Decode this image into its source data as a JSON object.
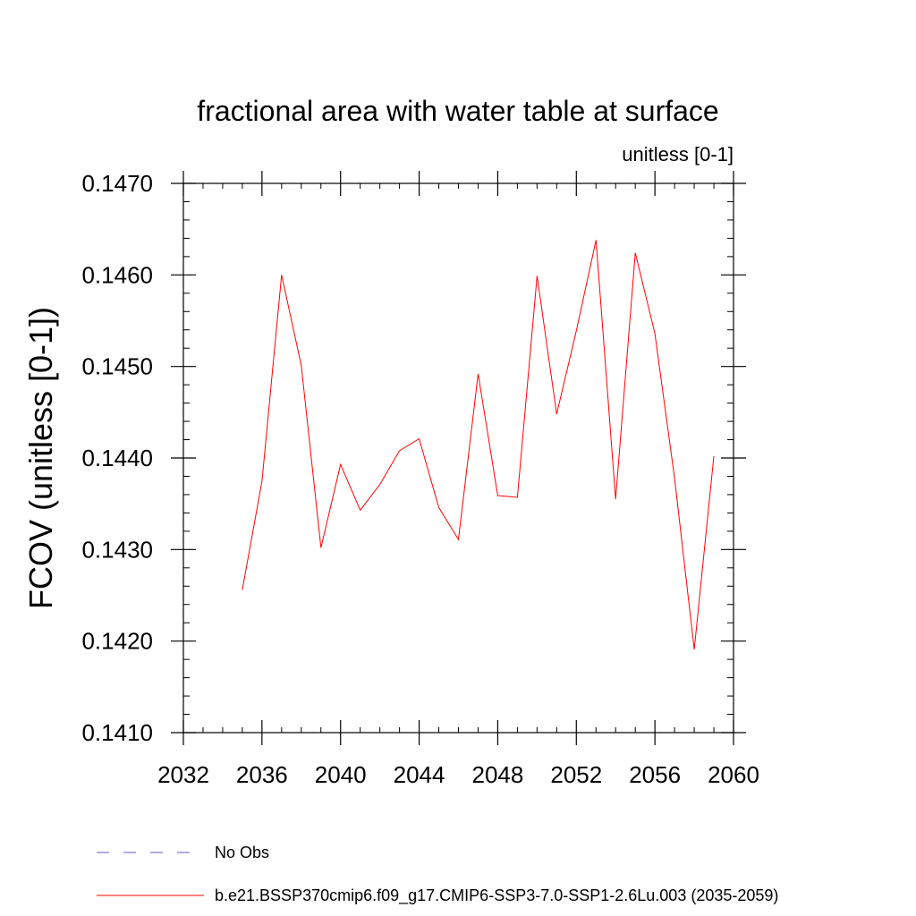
{
  "chart_data": {
    "type": "line",
    "title": "fractional area with water table at surface",
    "units_label": "unitless [0-1]",
    "ylabel": "FCOV  (unitless [0-1])",
    "xlabel": "",
    "xlim": [
      2032,
      2060
    ],
    "ylim": [
      0.141,
      0.147
    ],
    "x_ticks": [
      2032,
      2036,
      2040,
      2044,
      2048,
      2052,
      2056,
      2060
    ],
    "x_tick_labels": [
      "2032",
      "2036",
      "2040",
      "2044",
      "2048",
      "2052",
      "2056",
      "2060"
    ],
    "y_ticks": [
      0.141,
      0.142,
      0.143,
      0.144,
      0.145,
      0.146,
      0.147
    ],
    "y_tick_labels": [
      "0.1410",
      "0.1420",
      "0.1430",
      "0.1440",
      "0.1450",
      "0.1460",
      "0.1470"
    ],
    "series": [
      {
        "name": "b.e21.BSSP370cmip6.f09_g17.CMIP6-SSP3-7.0-SSP1-2.6Lu.003 (2035-2059)",
        "color": "#ff0000",
        "style": "solid",
        "x": [
          2035,
          2036,
          2037,
          2038,
          2039,
          2040,
          2041,
          2042,
          2043,
          2044,
          2045,
          2046,
          2047,
          2048,
          2049,
          2050,
          2051,
          2052,
          2053,
          2054,
          2055,
          2056,
          2057,
          2058,
          2059
        ],
        "values": [
          0.14256,
          0.14375,
          0.146,
          0.14501,
          0.14302,
          0.14393,
          0.14343,
          0.14371,
          0.14408,
          0.14421,
          0.14346,
          0.14311,
          0.14492,
          0.14359,
          0.14357,
          0.14599,
          0.14448,
          0.14539,
          0.14638,
          0.14355,
          0.14624,
          0.14536,
          0.14378,
          0.14191,
          0.14402
        ]
      }
    ],
    "legend": [
      {
        "label": "No Obs",
        "color": "#6a5acd",
        "style": "dashed"
      },
      {
        "label": "b.e21.BSSP370cmip6.f09_g17.CMIP6-SSP3-7.0-SSP1-2.6Lu.003 (2035-2059)",
        "color": "#ff0000",
        "style": "solid"
      }
    ],
    "legend_position": "bottom"
  }
}
